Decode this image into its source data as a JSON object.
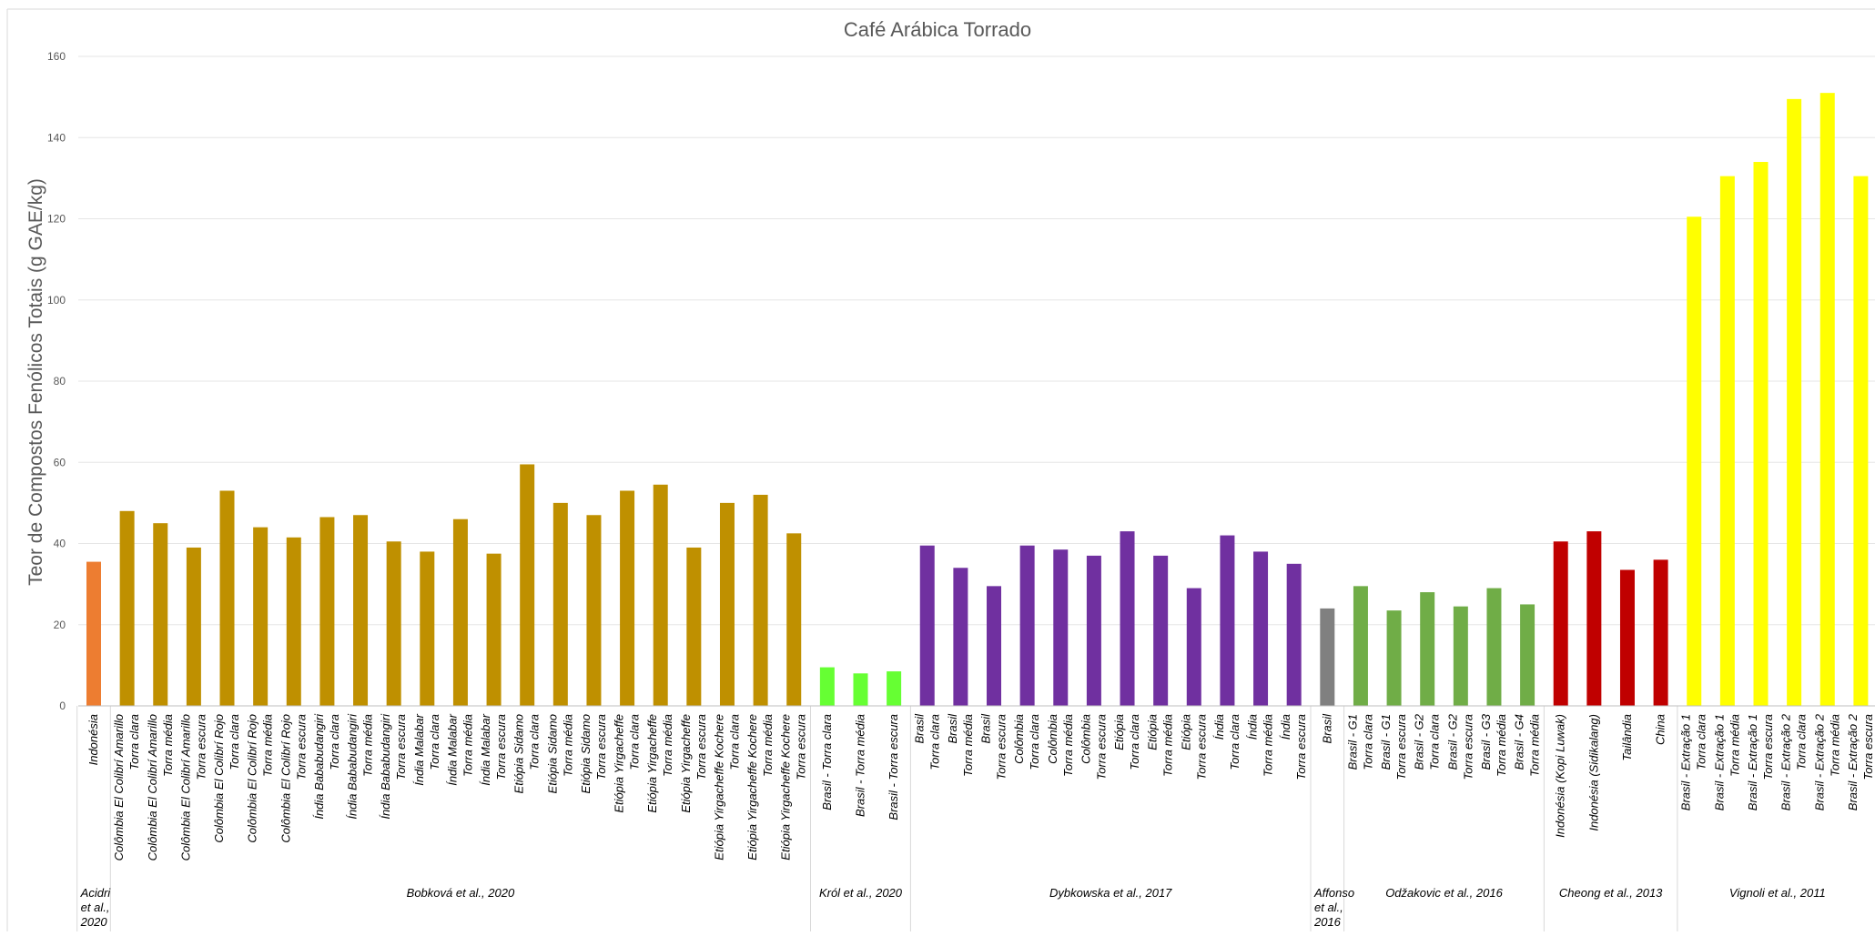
{
  "chart_data": {
    "type": "bar",
    "title": "Café Arábica Torrado",
    "ylabel": "Teor de Compostos Fenólicos Totais (g GAE/kg)",
    "xlabel": "",
    "ylim": [
      0,
      160
    ],
    "yticks": [
      0,
      20,
      40,
      60,
      80,
      100,
      120,
      140,
      160
    ],
    "grid": true,
    "bars": [
      {
        "label": [
          "Indonésia"
        ],
        "value": 35.5,
        "color": "#ED7D31",
        "group": 0
      },
      {
        "label": [
          "Colômbia El Colibrí Amarillo",
          "Torra clara"
        ],
        "value": 48,
        "color": "#BF9000",
        "group": 1
      },
      {
        "label": [
          "Colômbia El Colibrí Amarillo",
          "Torra média"
        ],
        "value": 45,
        "color": "#BF9000",
        "group": 1
      },
      {
        "label": [
          "Colômbia El Colibrí Amarillo",
          "Torra escura"
        ],
        "value": 39,
        "color": "#BF9000",
        "group": 1
      },
      {
        "label": [
          "Colômbia El Colibrí Rojo",
          "Torra clara"
        ],
        "value": 53,
        "color": "#BF9000",
        "group": 1
      },
      {
        "label": [
          "Colômbia El Colibrí Rojo",
          "Torra média"
        ],
        "value": 44,
        "color": "#BF9000",
        "group": 1
      },
      {
        "label": [
          "Colômbia El Colibrí Rojo",
          "Torra escura"
        ],
        "value": 41.5,
        "color": "#BF9000",
        "group": 1
      },
      {
        "label": [
          "Índia Bababudangiri",
          "Torra clara"
        ],
        "value": 46.5,
        "color": "#BF9000",
        "group": 1
      },
      {
        "label": [
          "Índia Bababudangiri",
          "Torra média"
        ],
        "value": 47,
        "color": "#BF9000",
        "group": 1
      },
      {
        "label": [
          "Índia Bababudangiri",
          "Torra escura"
        ],
        "value": 40.5,
        "color": "#BF9000",
        "group": 1
      },
      {
        "label": [
          "Índia Malabar",
          "Torra clara"
        ],
        "value": 38,
        "color": "#BF9000",
        "group": 1
      },
      {
        "label": [
          "Índia Malabar",
          "Torra média"
        ],
        "value": 46,
        "color": "#BF9000",
        "group": 1
      },
      {
        "label": [
          "Índia Malabar",
          "Torra escura"
        ],
        "value": 37.5,
        "color": "#BF9000",
        "group": 1
      },
      {
        "label": [
          "Etiópia Sidamo",
          "Torra clara"
        ],
        "value": 59.5,
        "color": "#BF9000",
        "group": 1
      },
      {
        "label": [
          "Etiópia Sidamo",
          "Torra média"
        ],
        "value": 50,
        "color": "#BF9000",
        "group": 1
      },
      {
        "label": [
          "Etiópia Sidamo",
          "Torra escura"
        ],
        "value": 47,
        "color": "#BF9000",
        "group": 1
      },
      {
        "label": [
          "Etiópia Yirgacheffe",
          "Torra clara"
        ],
        "value": 53,
        "color": "#BF9000",
        "group": 1
      },
      {
        "label": [
          "Etiópia Yirgacheffe",
          "Torra média"
        ],
        "value": 54.5,
        "color": "#BF9000",
        "group": 1
      },
      {
        "label": [
          "Etiópia Yirgacheffe",
          "Torra escura"
        ],
        "value": 39,
        "color": "#BF9000",
        "group": 1
      },
      {
        "label": [
          "Etiópia Yirgacheffe Kochere",
          "Torra clara"
        ],
        "value": 50,
        "color": "#BF9000",
        "group": 1
      },
      {
        "label": [
          "Etiópia Yirgacheffe Kochere",
          "Torra média"
        ],
        "value": 52,
        "color": "#BF9000",
        "group": 1
      },
      {
        "label": [
          "Etiópia Yirgacheffe Kochere",
          "Torra escura"
        ],
        "value": 42.5,
        "color": "#BF9000",
        "group": 1
      },
      {
        "label": [
          "Brasil - Torra clara"
        ],
        "value": 9.5,
        "color": "#66FF33",
        "group": 2
      },
      {
        "label": [
          "Brasil - Torra média"
        ],
        "value": 8,
        "color": "#66FF33",
        "group": 2
      },
      {
        "label": [
          "Brasil - Torra escura"
        ],
        "value": 8.5,
        "color": "#66FF33",
        "group": 2
      },
      {
        "label": [
          "Brasil",
          "Torra clara"
        ],
        "value": 39.5,
        "color": "#7030A0",
        "group": 3
      },
      {
        "label": [
          "Brasil",
          "Torra média"
        ],
        "value": 34,
        "color": "#7030A0",
        "group": 3
      },
      {
        "label": [
          "Brasil",
          "Torra escura"
        ],
        "value": 29.5,
        "color": "#7030A0",
        "group": 3
      },
      {
        "label": [
          "Colômbia",
          "Torra clara"
        ],
        "value": 39.5,
        "color": "#7030A0",
        "group": 3
      },
      {
        "label": [
          "Colômbia",
          "Torra média"
        ],
        "value": 38.5,
        "color": "#7030A0",
        "group": 3
      },
      {
        "label": [
          "Colômbia",
          "Torra escura"
        ],
        "value": 37,
        "color": "#7030A0",
        "group": 3
      },
      {
        "label": [
          "Etiópia",
          "Torra clara"
        ],
        "value": 43,
        "color": "#7030A0",
        "group": 3
      },
      {
        "label": [
          "Etiópia",
          "Torra média"
        ],
        "value": 37,
        "color": "#7030A0",
        "group": 3
      },
      {
        "label": [
          "Etiópia",
          "Torra escura"
        ],
        "value": 29,
        "color": "#7030A0",
        "group": 3
      },
      {
        "label": [
          "Índia",
          "Torra clara"
        ],
        "value": 42,
        "color": "#7030A0",
        "group": 3
      },
      {
        "label": [
          "Índia",
          "Torra média"
        ],
        "value": 38,
        "color": "#7030A0",
        "group": 3
      },
      {
        "label": [
          "Índia",
          "Torra escura"
        ],
        "value": 35,
        "color": "#7030A0",
        "group": 3
      },
      {
        "label": [
          "Brasil"
        ],
        "value": 24,
        "color": "#808080",
        "group": 4
      },
      {
        "label": [
          "Brasil - G1",
          "Torra clara"
        ],
        "value": 29.5,
        "color": "#70AD47",
        "group": 5
      },
      {
        "label": [
          "Brasil - G1",
          "Torra escura"
        ],
        "value": 23.5,
        "color": "#70AD47",
        "group": 5
      },
      {
        "label": [
          "Brasil - G2",
          "Torra clara"
        ],
        "value": 28,
        "color": "#70AD47",
        "group": 5
      },
      {
        "label": [
          "Brasil - G2",
          "Torra escura"
        ],
        "value": 24.5,
        "color": "#70AD47",
        "group": 5
      },
      {
        "label": [
          "Brasil - G3",
          "Torra média"
        ],
        "value": 29,
        "color": "#70AD47",
        "group": 5
      },
      {
        "label": [
          "Brasil - G4",
          "Torra média"
        ],
        "value": 25,
        "color": "#70AD47",
        "group": 5
      },
      {
        "label": [
          "Indonésia (Kopi Luwak)"
        ],
        "value": 40.5,
        "color": "#C00000",
        "group": 6
      },
      {
        "label": [
          "Indonésia (Sidikalang)"
        ],
        "value": 43,
        "color": "#C00000",
        "group": 6
      },
      {
        "label": [
          "Tailândia"
        ],
        "value": 33.5,
        "color": "#C00000",
        "group": 6
      },
      {
        "label": [
          "China"
        ],
        "value": 36,
        "color": "#C00000",
        "group": 6
      },
      {
        "label": [
          "Brasil - Extração 1",
          "Torra clara"
        ],
        "value": 120.5,
        "color": "#FFFF00",
        "group": 7
      },
      {
        "label": [
          "Brasil - Extração 1",
          "Torra média"
        ],
        "value": 130.5,
        "color": "#FFFF00",
        "group": 7
      },
      {
        "label": [
          "Brasil - Extração 1",
          "Torra escura"
        ],
        "value": 134,
        "color": "#FFFF00",
        "group": 7
      },
      {
        "label": [
          "Brasil - Extração 2",
          "Torra clara"
        ],
        "value": 149.5,
        "color": "#FFFF00",
        "group": 7
      },
      {
        "label": [
          "Brasil - Extração 2",
          "Torra média"
        ],
        "value": 151,
        "color": "#FFFF00",
        "group": 7
      },
      {
        "label": [
          "Brasil - Extração 2",
          "Torra escura"
        ],
        "value": 130.5,
        "color": "#FFFF00",
        "group": 7
      }
    ],
    "groups": [
      {
        "label": [
          "Acidri",
          "et al.,",
          "2020"
        ]
      },
      {
        "label": [
          "Bobková et al., 2020"
        ]
      },
      {
        "label": [
          "Król et al., 2020"
        ]
      },
      {
        "label": [
          "Dybkowska et al., 2017"
        ]
      },
      {
        "label": [
          "Affonso",
          "et al.,",
          "2016"
        ]
      },
      {
        "label": [
          "Odžakovic et al., 2016"
        ]
      },
      {
        "label": [
          "Cheong et al., 2013"
        ]
      },
      {
        "label": [
          "Vignoli et al., 2011"
        ]
      }
    ]
  }
}
